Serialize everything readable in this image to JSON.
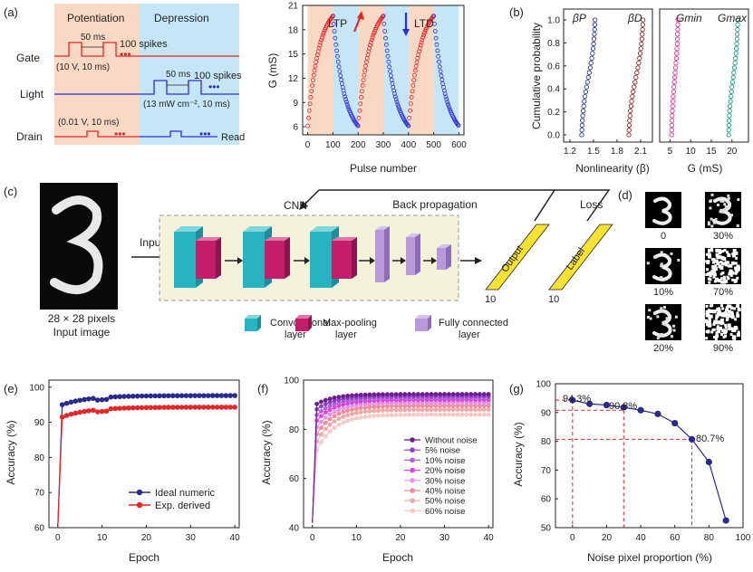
{
  "panel_labels": {
    "a": "(a)",
    "b": "(b)",
    "c": "(c)",
    "d": "(d)",
    "e": "(e)",
    "f": "(f)",
    "g": "(g)"
  },
  "panel_a": {
    "potentiation": "Potentiation",
    "depression": "Depression",
    "gate": "Gate",
    "light": "Light",
    "drain": "Drain",
    "gate_period": "50 ms",
    "gate_spikes": "100 spikes",
    "gate_pulse": "(10 V, 10 ms)",
    "light_period": "50 ms",
    "light_spikes": "100 spikes",
    "light_pulse": "(13 mW cm⁻², 10 ms)",
    "drain_pulse": "(0.01 V, 10 ms)",
    "read": "Read",
    "dots": "•••"
  },
  "colors": {
    "red": "#e5252a",
    "blue": "#2d2dd8",
    "pot_bg": "#f9d9c4",
    "dep_bg": "#c5e6f7"
  },
  "chart_data": [
    {
      "id": "a-right",
      "type": "scatter",
      "title": "",
      "xlabel": "Pulse number",
      "ylabel": "G (mS)",
      "xlim": [
        -20,
        620
      ],
      "ylim": [
        5,
        21
      ],
      "xticks": [
        0,
        100,
        200,
        300,
        400,
        500,
        600
      ],
      "yticks": [
        6,
        9,
        12,
        15,
        18,
        21
      ],
      "annotations": [
        "LTP",
        "LTD"
      ],
      "series": [
        {
          "name": "LTP",
          "color": "#e5252a",
          "segments": [
            [
              0,
              100
            ],
            [
              200,
              300
            ],
            [
              400,
              500
            ]
          ],
          "from": 6.1,
          "to": 19.7
        },
        {
          "name": "LTD",
          "color": "#2d2dd8",
          "segments": [
            [
              100,
              200
            ],
            [
              300,
              400
            ],
            [
              500,
              600
            ]
          ],
          "from": 19.7,
          "to": 6.1
        }
      ]
    },
    {
      "id": "b-left",
      "type": "line",
      "xlabel": "Nonlinearity (β)",
      "ylabel": "Cumulative probability",
      "xticks": [
        "1.2",
        "1.5",
        "1.8",
        "2.1"
      ],
      "yticks": [
        "0.0",
        "0.2",
        "0.4",
        "0.6",
        "0.8",
        "1.0"
      ],
      "legend": [
        "βP",
        "βD"
      ],
      "series": [
        {
          "name": "βP",
          "color": "#2e3a9a",
          "range": [
            1.35,
            1.52
          ]
        },
        {
          "name": "βD",
          "color": "#8e2b2b",
          "range": [
            1.95,
            2.13
          ]
        }
      ]
    },
    {
      "id": "b-right",
      "type": "line",
      "xlabel": "G (mS)",
      "ylabel": "",
      "xticks": [
        "5",
        "10",
        "15",
        "20"
      ],
      "legend": [
        "Gmin",
        "Gmax"
      ],
      "series": [
        {
          "name": "Gmin",
          "color": "#e8339a",
          "range": [
            5.4,
            6.9
          ]
        },
        {
          "name": "Gmax",
          "color": "#1c9c8c",
          "range": [
            19.2,
            21.4
          ]
        }
      ]
    },
    {
      "id": "e",
      "type": "line",
      "xlabel": "Epoch",
      "ylabel": "Accuracy (%)",
      "xlim": [
        -2,
        41
      ],
      "ylim": [
        60,
        102
      ],
      "xticks": [
        0,
        10,
        20,
        30,
        40
      ],
      "yticks": [
        60,
        70,
        80,
        90,
        100
      ],
      "series": [
        {
          "name": "Ideal numeric",
          "color": "#2a2a8c",
          "final": 97.6
        },
        {
          "name": "Exp. derived",
          "color": "#e5252a",
          "final": 94.3
        }
      ]
    },
    {
      "id": "f",
      "type": "line",
      "xlabel": "Epoch",
      "ylabel": "Accuracy (%)",
      "xlim": [
        -2,
        41
      ],
      "ylim": [
        40,
        100
      ],
      "xticks": [
        0,
        10,
        20,
        30,
        40
      ],
      "yticks": [
        40,
        60,
        80,
        100
      ],
      "series": [
        {
          "name": "Without noise",
          "color": "#6a1f8a",
          "final": 94.3
        },
        {
          "name": "5% noise",
          "color": "#8e3fc9",
          "final": 93.6
        },
        {
          "name": "10% noise",
          "color": "#b35fd6",
          "final": 92.8
        },
        {
          "name": "20% noise",
          "color": "#e042e0",
          "final": 92.0
        },
        {
          "name": "30% noise",
          "color": "#e494e4",
          "final": 90.8
        },
        {
          "name": "40% noise",
          "color": "#ef8c9a",
          "final": 89.6
        },
        {
          "name": "50% noise",
          "color": "#f2a7a7",
          "final": 88.0
        },
        {
          "name": "60% noise",
          "color": "#f7c9c4",
          "final": 86.0
        }
      ]
    },
    {
      "id": "g",
      "type": "line",
      "xlabel": "Noise pixel proportion (%)",
      "ylabel": "Accuracy (%)",
      "xlim": [
        -10,
        100
      ],
      "ylim": [
        50,
        100
      ],
      "xticks": [
        0,
        20,
        40,
        60,
        80,
        100
      ],
      "yticks": [
        50,
        60,
        70,
        80,
        90,
        100
      ],
      "x": [
        0,
        10,
        20,
        30,
        40,
        50,
        60,
        70,
        80,
        90
      ],
      "values": [
        94.3,
        93.0,
        92.6,
        91.8,
        90.8,
        89.5,
        86.3,
        80.7,
        72.8,
        52.5
      ],
      "annotations": [
        "94.3%",
        "90.8%",
        "80.7%"
      ],
      "color": "#2a2a8c"
    }
  ],
  "panel_c": {
    "cnn": "CNN",
    "back_propagation": "Back propagation",
    "loss": "Loss",
    "input": "Input",
    "output": "Output",
    "label": "Label",
    "ten_output": "10",
    "ten_label": "10",
    "input_caption_1": "28 × 28 pixels",
    "input_caption_2": "Input image",
    "legend_conv": "Convolutional",
    "legend_conv2": "layer",
    "legend_pool": "Max-pooling",
    "legend_pool2": "layer",
    "legend_fc": "Fully connected",
    "legend_fc2": "layer"
  },
  "panel_d": {
    "noise_labels": [
      "0",
      "30%",
      "10%",
      "70%",
      "20%",
      "90%"
    ]
  }
}
